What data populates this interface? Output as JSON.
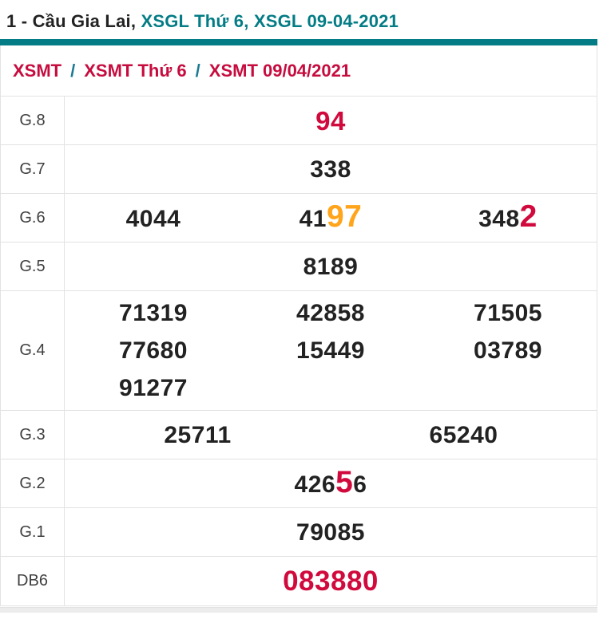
{
  "title": {
    "part1": "1 - Cầu Gia Lai,",
    "part2": "XSGL Thứ 6,",
    "part3": "XSGL 09-04-2021"
  },
  "breadcrumb": {
    "separator": "/",
    "items": [
      {
        "label": "XSMT"
      },
      {
        "label": "XSMT Thứ 6"
      },
      {
        "label": "XSMT 09/04/2021"
      }
    ]
  },
  "colors": {
    "teal": "#047c85",
    "red": "#d10a3d",
    "orange": "#ffa41b",
    "digit": "#222222",
    "border": "#e2e2e2",
    "label": "#3f3f3f",
    "strip": "#ececec"
  },
  "rows": [
    {
      "id": "g8",
      "label": "G.8",
      "lines": [
        [
          [
            {
              "t": "94",
              "color": "red",
              "size": "lg"
            }
          ]
        ]
      ]
    },
    {
      "id": "g7",
      "label": "G.7",
      "lines": [
        [
          [
            {
              "t": "338"
            }
          ]
        ]
      ]
    },
    {
      "id": "g6",
      "label": "G.6",
      "lines": [
        [
          [
            {
              "t": "4044"
            }
          ],
          [
            {
              "t": "41"
            },
            {
              "t": "97",
              "color": "orange",
              "size": "xl"
            }
          ],
          [
            {
              "t": "348"
            },
            {
              "t": "2",
              "color": "red",
              "size": "xl"
            }
          ]
        ]
      ]
    },
    {
      "id": "g5",
      "label": "G.5",
      "lines": [
        [
          [
            {
              "t": "8189"
            }
          ]
        ]
      ]
    },
    {
      "id": "g4",
      "label": "G.4",
      "lines": [
        [
          [
            {
              "t": "71319"
            }
          ],
          [
            {
              "t": "42858"
            }
          ],
          [
            {
              "t": "71505"
            }
          ]
        ],
        [
          [
            {
              "t": "77680"
            }
          ],
          [
            {
              "t": "15449"
            }
          ],
          [
            {
              "t": "03789"
            }
          ]
        ],
        [
          [
            {
              "t": "91277"
            }
          ],
          [],
          []
        ]
      ]
    },
    {
      "id": "g3",
      "label": "G.3",
      "lines": [
        [
          [
            {
              "t": "25711"
            }
          ],
          [
            {
              "t": "65240"
            }
          ]
        ]
      ]
    },
    {
      "id": "g2",
      "label": "G.2",
      "lines": [
        [
          [
            {
              "t": "426"
            },
            {
              "t": "5",
              "color": "red",
              "size": "xl"
            },
            {
              "t": "6"
            }
          ]
        ]
      ]
    },
    {
      "id": "g1",
      "label": "G.1",
      "lines": [
        [
          [
            {
              "t": "79085"
            }
          ]
        ]
      ]
    },
    {
      "id": "db6",
      "label": "DB6",
      "lines": [
        [
          [
            {
              "t": "083880",
              "color": "red",
              "size": "db"
            }
          ]
        ]
      ]
    }
  ]
}
